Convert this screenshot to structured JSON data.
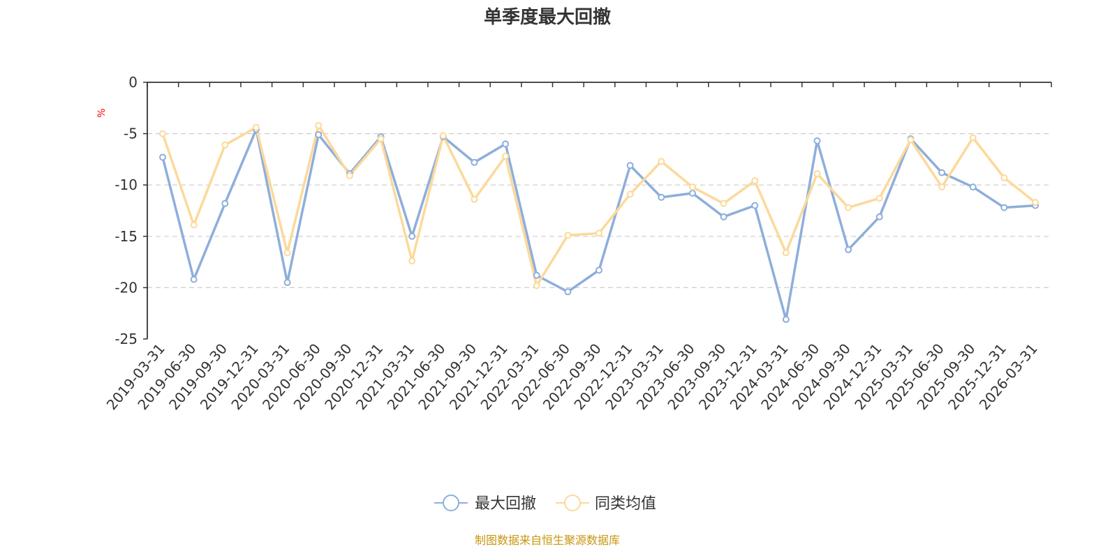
{
  "chart_data": {
    "type": "line",
    "title": "单季度最大回撤",
    "ylabel": "%",
    "ylim": [
      -25,
      0
    ],
    "yticks": [
      0,
      -5,
      -10,
      -15,
      -20,
      -25
    ],
    "grid": true,
    "legend_position": "bottom",
    "x": [
      "2019-03-31",
      "2019-06-30",
      "2019-09-30",
      "2019-12-31",
      "2020-03-31",
      "2020-06-30",
      "2020-09-30",
      "2020-12-31",
      "2021-03-31",
      "2021-06-30",
      "2021-09-30",
      "2021-12-31",
      "2022-03-31",
      "2022-06-30",
      "2022-09-30",
      "2022-12-31",
      "2023-03-31",
      "2023-06-30",
      "2023-09-30",
      "2023-12-31",
      "2024-03-31",
      "2024-06-30",
      "2024-09-30",
      "2024-12-31",
      "2025-03-31",
      "2025-06-30",
      "2025-09-30",
      "2025-12-31",
      "2026-03-31"
    ],
    "series": [
      {
        "name": "最大回撤",
        "color": "#8eaedb",
        "values": [
          -7.3,
          -19.2,
          -11.8,
          -4.6,
          -19.5,
          -5.1,
          -8.9,
          -5.3,
          -15.0,
          -5.3,
          -7.8,
          -6.0,
          -18.8,
          -20.4,
          -18.3,
          -8.1,
          -11.2,
          -10.8,
          -13.1,
          -12.0,
          -23.1,
          -5.7,
          -16.3,
          -13.1,
          -5.5,
          -8.8,
          -10.2,
          -12.2,
          -12.0
        ]
      },
      {
        "name": "同类均值",
        "color": "#fcd99a",
        "values": [
          -5.0,
          -13.9,
          -6.1,
          -4.4,
          -16.6,
          -4.2,
          -9.1,
          -5.5,
          -17.4,
          -5.2,
          -11.4,
          -7.2,
          -19.8,
          -14.9,
          -14.7,
          -10.9,
          -7.7,
          -10.2,
          -11.8,
          -9.6,
          -16.6,
          -8.9,
          -12.2,
          -11.3,
          -5.6,
          -10.2,
          -5.4,
          -9.3,
          -11.7
        ]
      }
    ],
    "source_note": "制图数据来自恒生聚源数据库"
  }
}
